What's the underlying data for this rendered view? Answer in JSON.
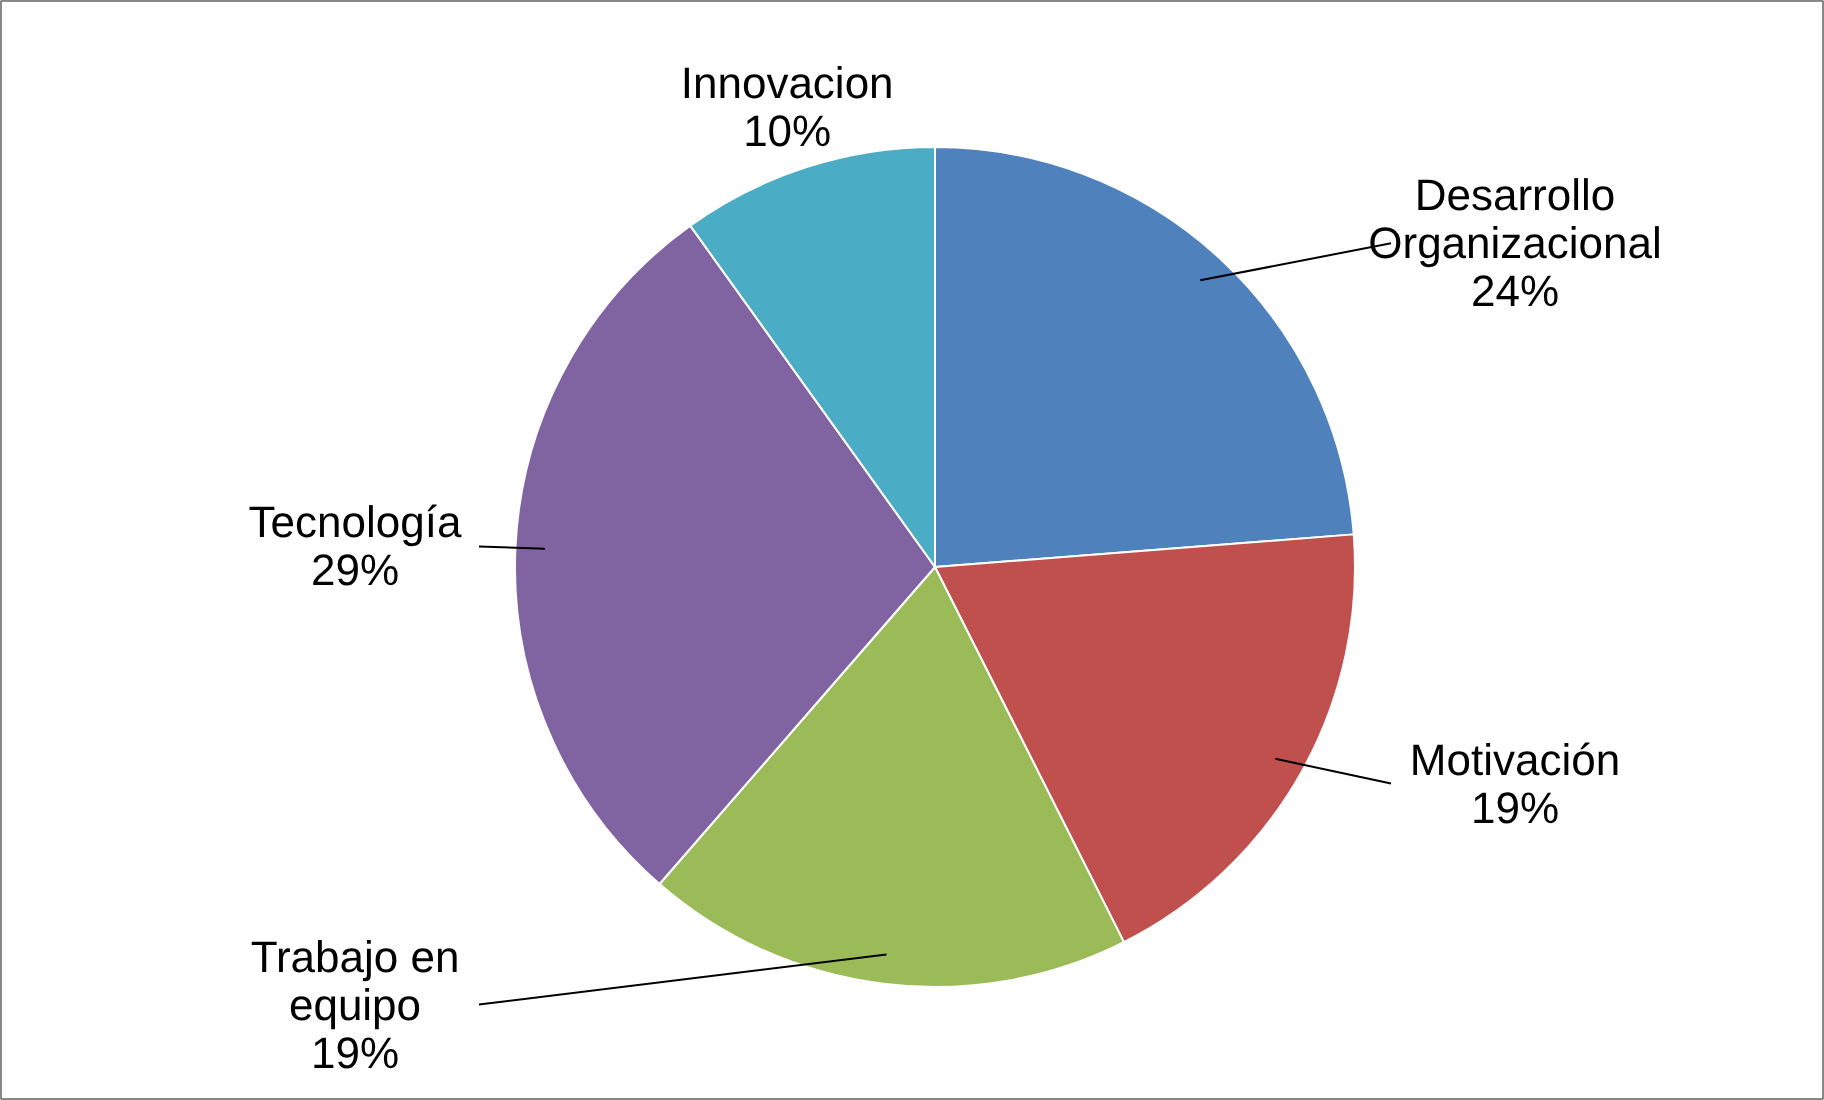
{
  "chart_data": {
    "type": "pie",
    "categories": [
      "Desarrollo Organizacional",
      "Motivación",
      "Trabajo en equipo",
      "Tecnología",
      "Innovacion"
    ],
    "values": [
      24,
      19,
      19,
      29,
      10
    ],
    "colors": [
      "#4f81bd",
      "#c0504d",
      "#9bbb59",
      "#8064a2",
      "#4bacc6"
    ],
    "value_labels": [
      "24%",
      "19%",
      "19%",
      "29%",
      "10%"
    ]
  }
}
